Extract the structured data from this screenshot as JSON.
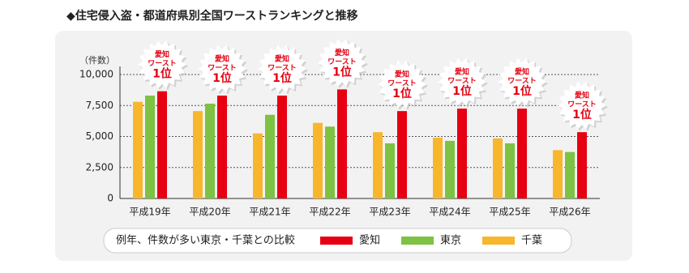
{
  "chart_data": {
    "type": "bar",
    "title": "◆住宅侵入盗・都道府県別全国ワーストランキングと推移",
    "y_label": "（件数）",
    "categories": [
      "平成19年",
      "平成20年",
      "平成21年",
      "平成22年",
      "平成23年",
      "平成24年",
      "平成25年",
      "平成26年"
    ],
    "series": [
      {
        "name": "千葉",
        "color": "#f8b62d",
        "values": [
          7800,
          7050,
          5250,
          6100,
          5350,
          4900,
          4850,
          3900
        ]
      },
      {
        "name": "東京",
        "color": "#7dc242",
        "values": [
          8300,
          7650,
          6750,
          5800,
          4450,
          4650,
          4450,
          3750
        ]
      },
      {
        "name": "愛知",
        "color": "#e60012",
        "values": [
          8650,
          8300,
          8300,
          8800,
          7050,
          7250,
          7250,
          5350
        ]
      }
    ],
    "annotation": [
      "愛知",
      "ワースト",
      "1位"
    ],
    "ylim": [
      0,
      10000
    ],
    "yticks": [
      0,
      {
        "value": 2500,
        "label": "2,500"
      },
      {
        "value": 5000,
        "label": "5,000"
      },
      {
        "value": 7500,
        "label": "7,500"
      },
      {
        "value": 10000,
        "label": "10,000"
      }
    ],
    "grid": true,
    "legend_title": "例年、件数が多い東京・千葉との比較"
  }
}
